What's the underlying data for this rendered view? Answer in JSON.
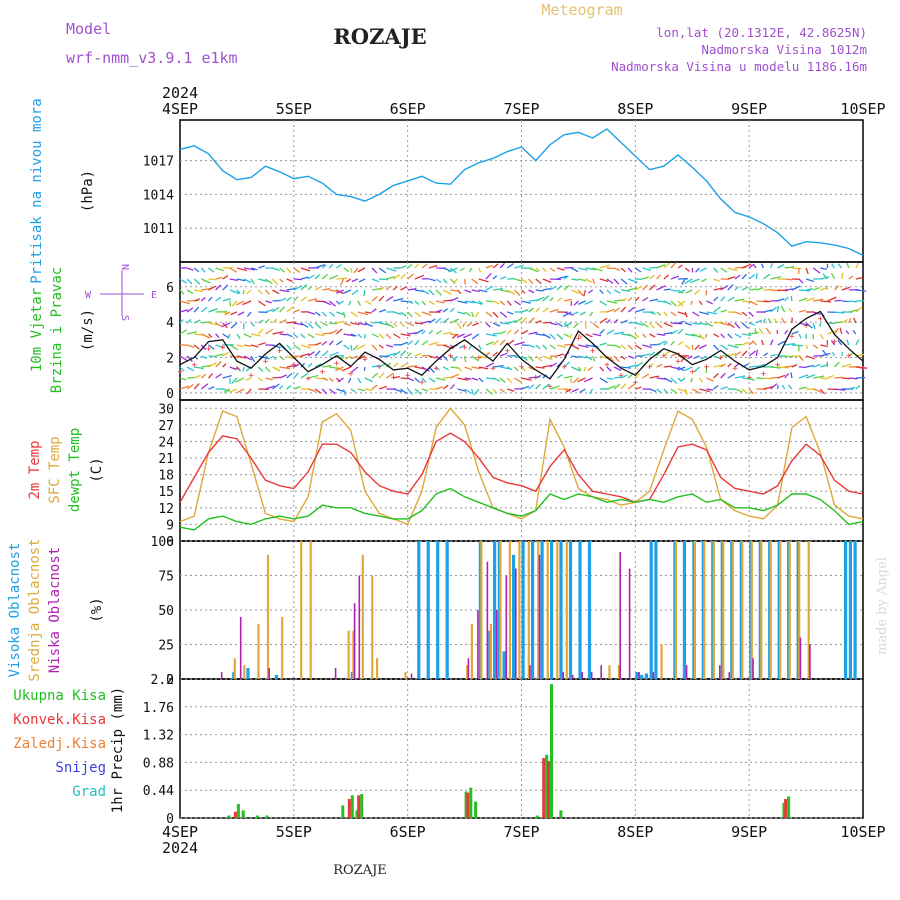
{
  "header": {
    "model_label": "Model",
    "model_name": "wrf-nmm_v3.9.1  e1km",
    "station": "ROZAJE",
    "meteogram": "Meteogram",
    "coords": "lon,lat (20.1312E, 42.8625N)",
    "elevation": "Nadmorska Visina 1012m",
    "model_elevation": "Nadmorska Visina u modelu 1186.16m"
  },
  "footer": {
    "station": "ROZAJE",
    "credit": "made by Angel"
  },
  "colors": {
    "pressure": "#1ea0e6",
    "wind_label": "#22c020",
    "temp2m": "#e8393a",
    "sfc_temp": "#dfa83a",
    "dewpt": "#22c020",
    "high_cloud": "#1ea0e6",
    "mid_cloud": "#dfa83a",
    "low_cloud": "#b020b0",
    "total_precip": "#22c020",
    "conv_precip": "#e8393a",
    "frozen": "#ef8030",
    "snow": "#4040e0",
    "hail": "#20c0c0",
    "axis_purple": "#a050d0"
  },
  "chart_data": [
    {
      "type": "line",
      "panel": "pressure",
      "x_axis": {
        "top_year": "2024",
        "bottom_year": "2024",
        "categories": [
          "4SEP",
          "5SEP",
          "6SEP",
          "7SEP",
          "8SEP",
          "9SEP",
          "10SEP"
        ]
      },
      "title": "Pritisak na nivou mora",
      "ylabel": "(hPa)",
      "yticks": [
        "1011",
        "1014",
        "1017"
      ],
      "ylim": [
        1008.0,
        1020.6
      ],
      "series": [
        {
          "name": "Pritisak na nivou mora",
          "x_hours": [
            0,
            3,
            6,
            9,
            12,
            15,
            18,
            21,
            24,
            27,
            30,
            33,
            36,
            39,
            42,
            45,
            48,
            51,
            54,
            57,
            60,
            63,
            66,
            69,
            72,
            75,
            78,
            81,
            84,
            87,
            90,
            93,
            96,
            99,
            102,
            105,
            108,
            111,
            114,
            117,
            120,
            123,
            126,
            129,
            132,
            135,
            138,
            141,
            144
          ],
          "values": [
            1018.0,
            1018.3,
            1017.6,
            1016.1,
            1015.3,
            1015.5,
            1016.5,
            1016.0,
            1015.4,
            1015.6,
            1015.0,
            1014.0,
            1013.8,
            1013.4,
            1014.0,
            1014.8,
            1015.2,
            1015.6,
            1015.0,
            1014.9,
            1016.2,
            1016.8,
            1017.2,
            1017.8,
            1018.2,
            1017.0,
            1018.4,
            1019.3,
            1019.5,
            1019.0,
            1019.8,
            1018.6,
            1017.4,
            1016.2,
            1016.5,
            1017.5,
            1016.4,
            1015.2,
            1013.6,
            1012.4,
            1012.0,
            1011.4,
            1010.6,
            1009.4,
            1009.8,
            1009.7,
            1009.5,
            1009.2,
            1008.6
          ]
        }
      ]
    },
    {
      "type": "line",
      "panel": "wind",
      "title": "10m Vjetar Brzina i Pravac",
      "ylabel": "(m/s)",
      "compass": {
        "n": "N",
        "s": "S",
        "w": "W",
        "e": "E"
      },
      "yticks": [
        "0",
        "2",
        "4",
        "6"
      ],
      "ylim": [
        -0.4,
        7.4
      ],
      "series": [
        {
          "name": "10m Vjetar Brzina",
          "x_hours": [
            0,
            3,
            6,
            9,
            12,
            15,
            18,
            21,
            24,
            27,
            30,
            33,
            36,
            39,
            42,
            45,
            48,
            51,
            54,
            57,
            60,
            63,
            66,
            69,
            72,
            75,
            78,
            81,
            84,
            87,
            90,
            93,
            96,
            99,
            102,
            105,
            108,
            111,
            114,
            117,
            120,
            123,
            126,
            129,
            132,
            135,
            138,
            141,
            144
          ],
          "values": [
            1.6,
            2.0,
            2.9,
            3.0,
            1.8,
            1.4,
            2.2,
            2.8,
            2.0,
            1.2,
            1.6,
            2.1,
            1.5,
            2.3,
            1.9,
            1.3,
            1.4,
            1.0,
            1.8,
            2.5,
            3.0,
            2.4,
            1.8,
            2.8,
            1.9,
            1.3,
            0.8,
            1.9,
            3.5,
            2.8,
            2.0,
            1.4,
            1.0,
            1.9,
            2.5,
            2.2,
            1.6,
            1.9,
            2.4,
            1.8,
            1.3,
            1.5,
            2.0,
            3.6,
            4.2,
            4.6,
            3.3,
            2.5,
            1.8
          ]
        }
      ]
    },
    {
      "type": "line",
      "panel": "temperature",
      "labels": {
        "t2m": "2m Temp",
        "sfc": "SFC Temp",
        "dew": "dewpt Temp"
      },
      "ylabel": "(C)",
      "yticks": [
        "6",
        "9",
        "12",
        "15",
        "18",
        "21",
        "24",
        "27",
        "30"
      ],
      "ylim": [
        6,
        31.5
      ],
      "x_hours": [
        0,
        3,
        6,
        9,
        12,
        15,
        18,
        21,
        24,
        27,
        30,
        33,
        36,
        39,
        42,
        45,
        48,
        51,
        54,
        57,
        60,
        63,
        66,
        69,
        72,
        75,
        78,
        81,
        84,
        87,
        90,
        93,
        96,
        99,
        102,
        105,
        108,
        111,
        114,
        117,
        120,
        123,
        126,
        129,
        132,
        135,
        138,
        141,
        144
      ],
      "series": [
        {
          "name": "2m Temp",
          "values": [
            13.0,
            17.5,
            22.0,
            25.0,
            24.5,
            21.0,
            17.0,
            16.0,
            15.5,
            18.5,
            23.5,
            23.5,
            22.0,
            18.5,
            16.0,
            15.0,
            14.5,
            18.0,
            24.0,
            25.5,
            24.0,
            21.0,
            17.5,
            16.5,
            16.0,
            15.0,
            19.5,
            22.5,
            18.0,
            15.0,
            14.5,
            14.0,
            13.0,
            13.5,
            18.0,
            23.0,
            23.5,
            22.5,
            17.5,
            15.5,
            15.0,
            14.5,
            16.0,
            20.5,
            23.5,
            21.5,
            17.0,
            15.0,
            14.5
          ]
        },
        {
          "name": "SFC Temp",
          "values": [
            9.5,
            10.5,
            22.0,
            29.5,
            28.5,
            20.0,
            11.0,
            10.0,
            9.5,
            14.0,
            27.5,
            29.0,
            26.0,
            15.0,
            11.0,
            10.0,
            9.0,
            15.0,
            26.5,
            30.0,
            27.0,
            18.5,
            12.0,
            11.0,
            10.0,
            11.5,
            28.0,
            23.0,
            15.5,
            14.0,
            13.5,
            12.5,
            13.0,
            15.0,
            22.5,
            29.5,
            28.0,
            23.0,
            13.5,
            11.5,
            10.5,
            10.0,
            12.5,
            26.5,
            28.5,
            22.0,
            12.5,
            10.5,
            10.0
          ]
        },
        {
          "name": "dewpt Temp",
          "values": [
            8.5,
            8.0,
            10.0,
            10.5,
            9.5,
            9.0,
            10.0,
            10.5,
            10.0,
            10.5,
            12.5,
            12.0,
            12.0,
            11.0,
            10.5,
            10.0,
            10.0,
            11.5,
            14.5,
            15.5,
            14.0,
            13.0,
            12.0,
            11.0,
            10.5,
            11.5,
            14.5,
            13.5,
            14.5,
            14.0,
            13.0,
            13.5,
            13.0,
            13.5,
            13.0,
            14.0,
            14.5,
            13.0,
            13.5,
            12.0,
            12.0,
            11.5,
            12.5,
            14.5,
            14.5,
            13.5,
            11.5,
            9.0,
            9.5
          ]
        }
      ]
    },
    {
      "type": "bar",
      "panel": "cloud",
      "labels": {
        "high": "Visoka Oblacnost",
        "mid": "Srednja Oblacnost",
        "low": "Niska Oblacnost"
      },
      "ylabel": "(%)",
      "yticks": [
        "0",
        "25",
        "50",
        "75",
        "100"
      ],
      "ylim": [
        0,
        100
      ],
      "series": [
        {
          "name": "Visoka Oblacnost",
          "x_hours": [
            11,
            14,
            20,
            36,
            50,
            52,
            54,
            56,
            63,
            65,
            66,
            67,
            68,
            70,
            72,
            74,
            76,
            78,
            80,
            82,
            84,
            86,
            96,
            97,
            98,
            99,
            100,
            104,
            106,
            108,
            110,
            112,
            114,
            116,
            118,
            120,
            122,
            124,
            126,
            128,
            130,
            140,
            141,
            142
          ],
          "values": [
            5,
            8,
            3,
            5,
            100,
            100,
            100,
            100,
            100,
            35,
            100,
            100,
            20,
            90,
            100,
            100,
            100,
            100,
            100,
            100,
            100,
            100,
            5,
            3,
            4,
            100,
            100,
            100,
            100,
            100,
            100,
            100,
            100,
            100,
            100,
            100,
            100,
            100,
            100,
            100,
            100,
            100,
            100,
            100
          ]
        },
        {
          "name": "Srednja Oblacnost",
          "x_hours": [
            11,
            13,
            16,
            18,
            21,
            25,
            27,
            35,
            36,
            38,
            40,
            41,
            47,
            60,
            61,
            63,
            65,
            67,
            69,
            71,
            73,
            75,
            77,
            79,
            81,
            90,
            92,
            101,
            104,
            108,
            110,
            112,
            114,
            116,
            118,
            120,
            122,
            124,
            126,
            128,
            130,
            132
          ],
          "values": [
            15,
            10,
            40,
            90,
            45,
            100,
            100,
            35,
            35,
            90,
            75,
            15,
            5,
            10,
            40,
            100,
            40,
            100,
            100,
            100,
            100,
            100,
            100,
            100,
            100,
            10,
            10,
            25,
            100,
            100,
            100,
            100,
            100,
            100,
            100,
            100,
            100,
            100,
            100,
            100,
            100,
            100
          ]
        },
        {
          "name": "Niska Oblacnost",
          "x_hours": [
            8,
            12,
            18,
            32,
            36,
            37,
            48,
            60,
            62,
            64,
            66,
            68,
            70,
            73,
            75,
            80,
            82,
            84,
            86,
            88,
            92,
            94,
            96,
            99,
            106,
            113,
            115,
            120,
            130,
            132
          ],
          "values": [
            5,
            45,
            8,
            8,
            55,
            75,
            4,
            15,
            50,
            85,
            50,
            75,
            80,
            10,
            90,
            5,
            3,
            5,
            5,
            10,
            92,
            80,
            5,
            5,
            10,
            10,
            5,
            15,
            30,
            25
          ]
        }
      ]
    },
    {
      "type": "bar",
      "panel": "precip",
      "labels": {
        "total": "Ukupna Kisa",
        "convective": "Konvek.Kisa",
        "frozen": "Zaledj.Kisa",
        "snow": "Snijeg",
        "hail": "Grad"
      },
      "ylabel": "1hr Precip (mm)",
      "yticks": [
        "0",
        "0.44",
        "0.88",
        "1.32",
        "1.76",
        "2.2"
      ],
      "ylim": [
        0,
        2.2
      ],
      "series": [
        {
          "name": "Ukupna Kisa",
          "x_hours": [
            10,
            12,
            13,
            16,
            18,
            34,
            36,
            37,
            38,
            60,
            61,
            62,
            75,
            77,
            78,
            80,
            127,
            128
          ],
          "values": [
            0.04,
            0.22,
            0.12,
            0.04,
            0.04,
            0.2,
            0.36,
            0.12,
            0.38,
            0.42,
            0.48,
            0.26,
            0.04,
            1.0,
            2.12,
            0.12,
            0.24,
            0.34
          ]
        },
        {
          "name": "Konvek.Kisa",
          "x_hours": [
            12,
            36,
            38,
            61,
            77,
            78,
            128
          ],
          "values": [
            0.1,
            0.3,
            0.36,
            0.4,
            0.95,
            0.9,
            0.3
          ]
        }
      ]
    }
  ]
}
